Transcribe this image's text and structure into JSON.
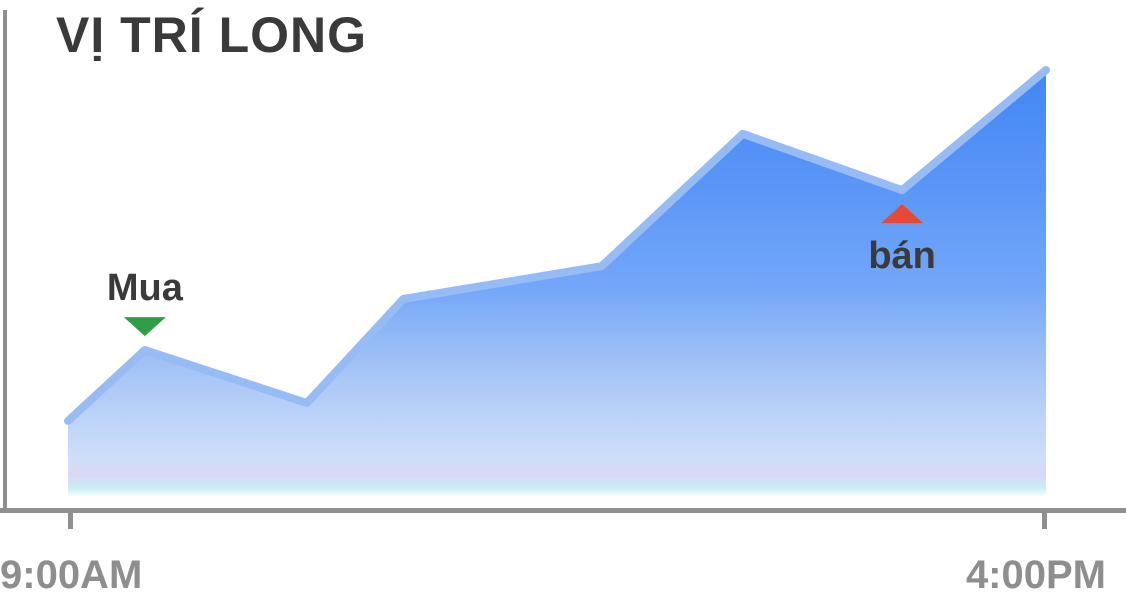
{
  "chart_data": {
    "type": "area",
    "title": "VỊ TRÍ LONG",
    "xlabel": "",
    "ylabel": "",
    "x_unit": "hour_of_day",
    "x": [
      9.0,
      9.55,
      10.71,
      11.4,
      12.82,
      13.83,
      14.97,
      16.0
    ],
    "values": [
      19.7,
      35.9,
      23.8,
      47.6,
      55.1,
      85.4,
      72.5,
      100.0
    ],
    "xlim": [
      9,
      16
    ],
    "ylim": [
      0,
      100
    ],
    "x_tick_labels": [
      "9:00AM",
      "4:00PM"
    ],
    "grid": false,
    "legend": null,
    "annotations": [
      {
        "label": "Mua",
        "type": "buy",
        "point_index": 1,
        "marker": "triangle-down",
        "color": "#2f9e44",
        "position": "above"
      },
      {
        "label": "bán",
        "type": "sell",
        "point_index": 6,
        "marker": "triangle-up",
        "color": "#e64a35",
        "position": "below"
      }
    ],
    "colors": {
      "line": "#97bbf5",
      "axis": "#8f8f8f",
      "tick_text": "#8e8e8e",
      "title_text": "#3a3a3a",
      "buy_marker": "#2f9e44",
      "sell_marker": "#e64a35",
      "fill_gradient": [
        {
          "at": 0.0,
          "color": "#4186f5"
        },
        {
          "at": 0.15,
          "color": "#4f90f6"
        },
        {
          "at": 0.3,
          "color": "#5e98f7"
        },
        {
          "at": 0.5,
          "color": "#74a7f8"
        },
        {
          "at": 0.66,
          "color": "#9fc0f6"
        },
        {
          "at": 0.8,
          "color": "#bed4f8"
        },
        {
          "at": 0.89,
          "color": "#cfdef9"
        },
        {
          "at": 0.925,
          "color": "#d9d8f7"
        },
        {
          "at": 0.955,
          "color": "#c9eef4"
        },
        {
          "at": 0.975,
          "color": "#ffffff"
        },
        {
          "at": 1.0,
          "color": "#ffffff"
        }
      ]
    }
  }
}
